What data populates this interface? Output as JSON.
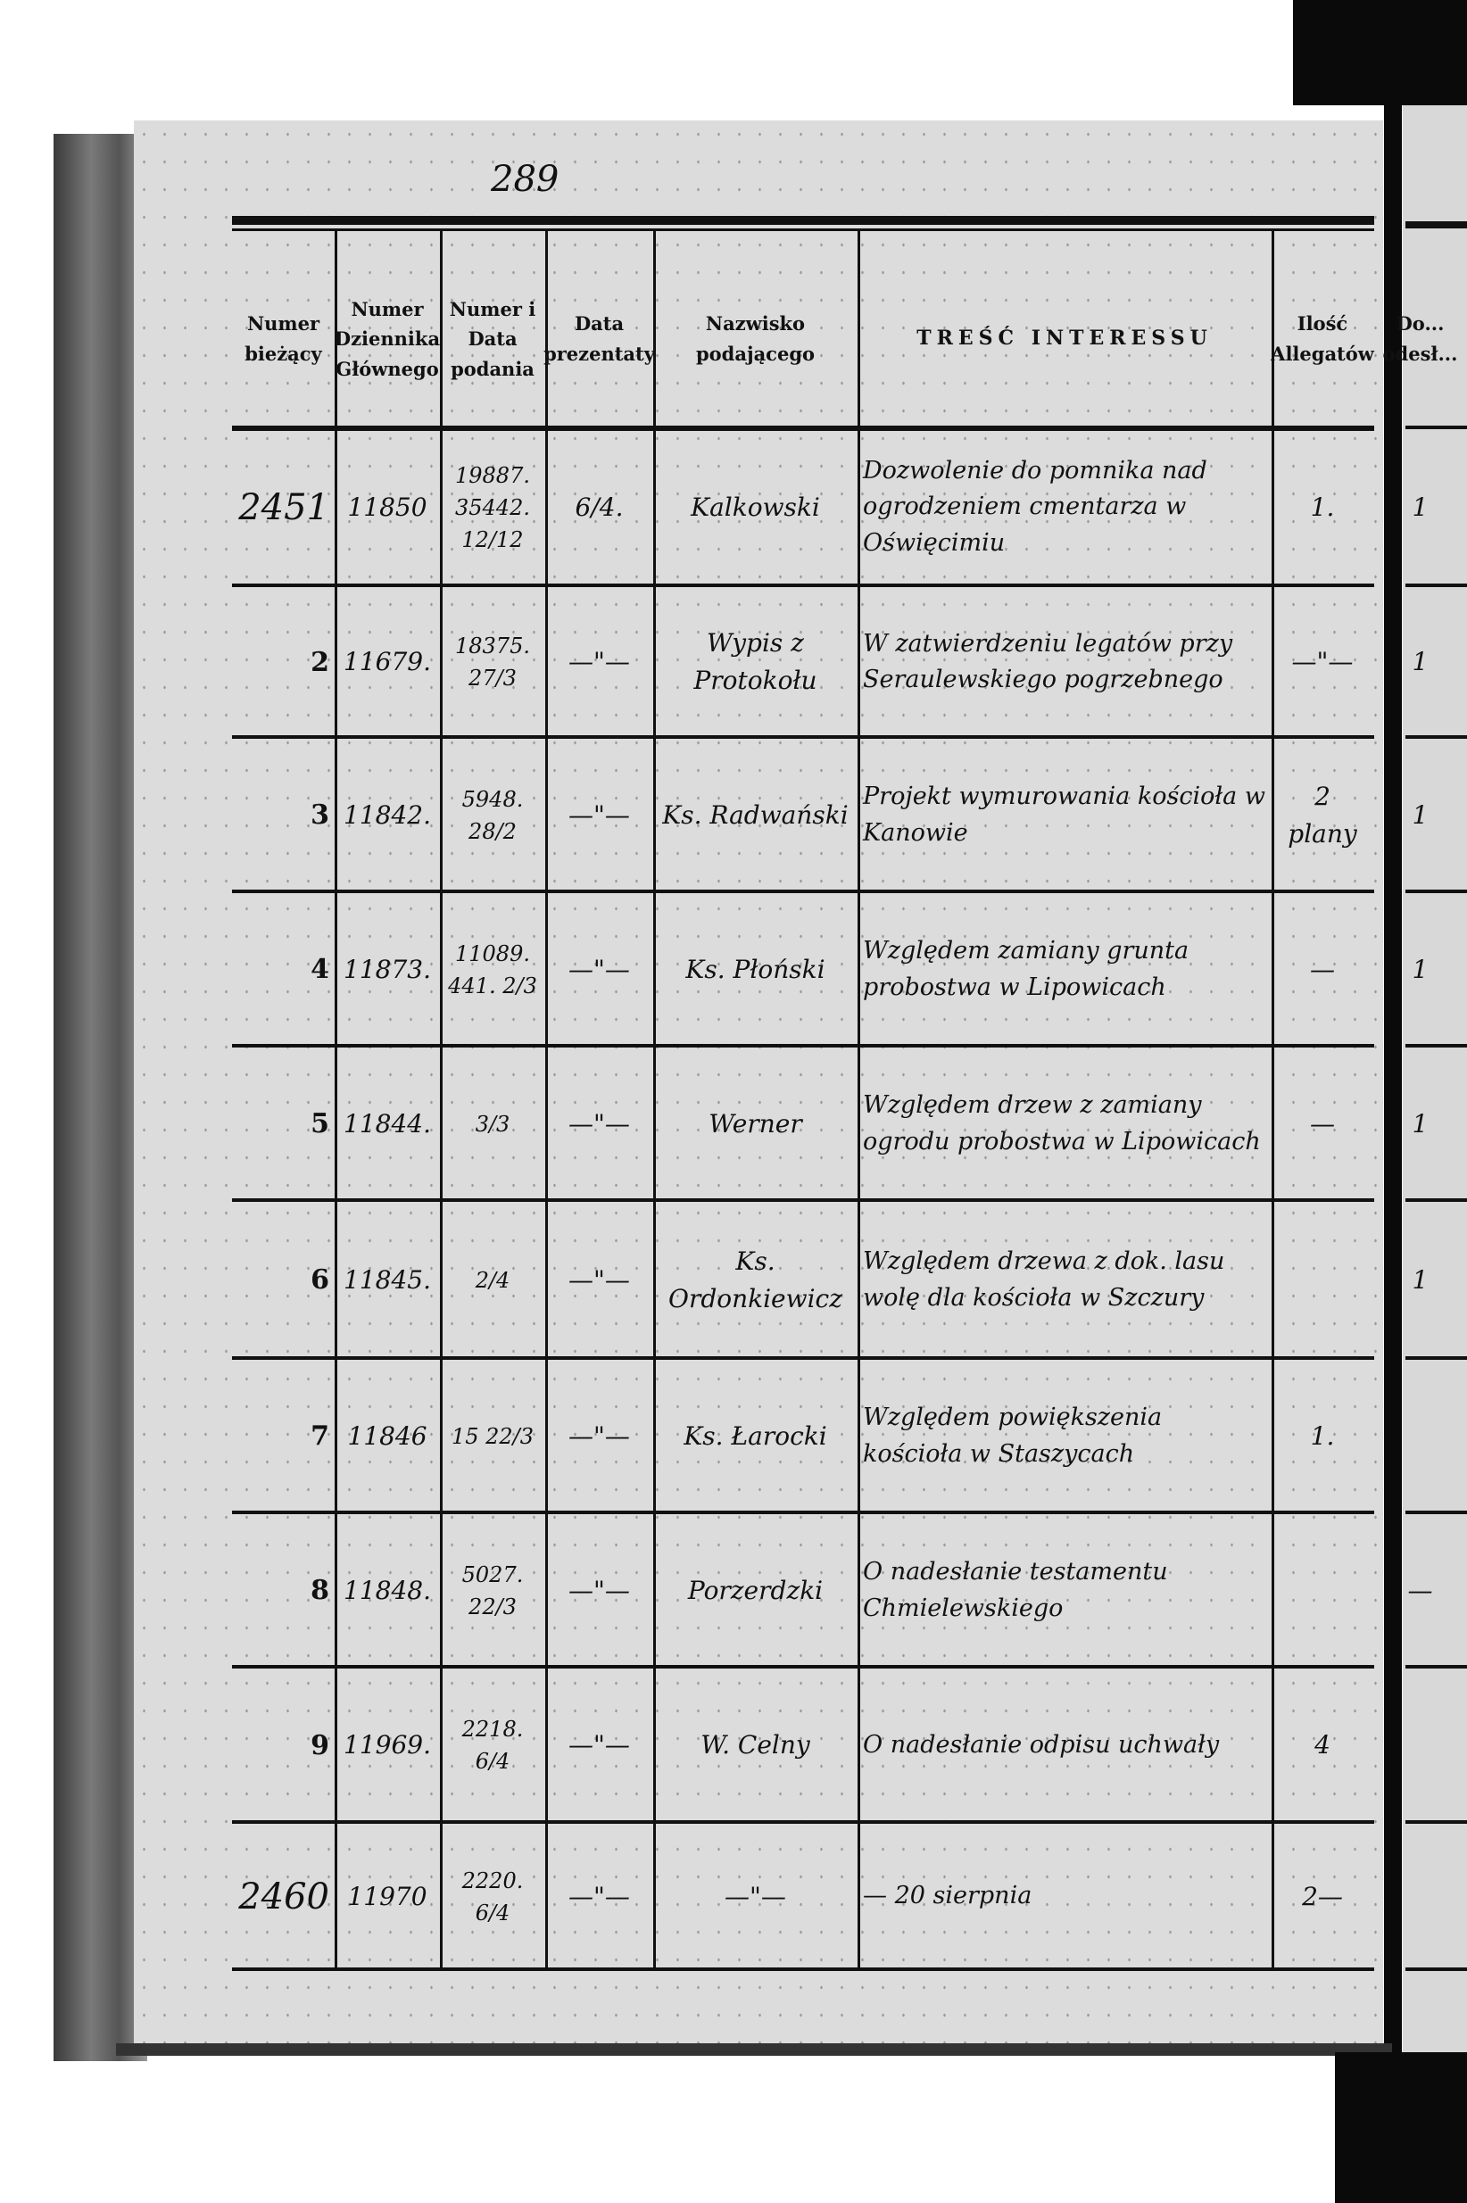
{
  "page_number": "289",
  "headers": [
    "Numer bieżący",
    "Numer Dziennika Głównego",
    "Numer i Data podania",
    "Data prezentaty",
    "Nazwisko podającego",
    "TREŚĆ INTERESSU",
    "Ilość Allegatów",
    "Do... odesł..."
  ],
  "rows": [
    {
      "numer": "2451",
      "dziennik": "11850",
      "podanie": "19887. 35442. 12/12",
      "prezentata": "6/4.",
      "nazwisko": "Kalkowski",
      "tresc": "Dozwolenie do pomnika nad ogrodzeniem cmentarza w Oświęcimiu",
      "allegata": "1.",
      "odeslanie": "1"
    },
    {
      "numer": "2",
      "dziennik": "11679.",
      "podanie": "18375. 27/3",
      "prezentata": "—\"—",
      "nazwisko": "Wypis z Protokołu",
      "tresc": "W zatwierdzeniu legatów przy Seraulewskiego pogrzebnego",
      "allegata": "—\"—",
      "odeslanie": "1"
    },
    {
      "numer": "3",
      "dziennik": "11842.",
      "podanie": "5948. 28/2",
      "prezentata": "—\"—",
      "nazwisko": "Ks. Radwański",
      "tresc": "Projekt wymurowania kościoła w Kanowie",
      "allegata": "2 plany",
      "odeslanie": "1"
    },
    {
      "numer": "4",
      "dziennik": "11873.",
      "podanie": "11089. 441. 2/3",
      "prezentata": "—\"—",
      "nazwisko": "Ks. Płoński",
      "tresc": "Względem zamiany grunta probostwa w Lipowicach",
      "allegata": "—",
      "odeslanie": "1"
    },
    {
      "numer": "5",
      "dziennik": "11844.",
      "podanie": "3/3",
      "prezentata": "—\"—",
      "nazwisko": "Werner",
      "tresc": "Względem drzew z zamiany ogrodu probostwa w Lipowicach",
      "allegata": "—",
      "odeslanie": "1"
    },
    {
      "numer": "6",
      "dziennik": "11845.",
      "podanie": "2/4",
      "prezentata": "—\"—",
      "nazwisko": "Ks. Ordonkiewicz",
      "tresc": "Względem drzewa z dok. lasu wolę dla kościoła w Szczury",
      "allegata": "",
      "odeslanie": "1"
    },
    {
      "numer": "7",
      "dziennik": "11846",
      "podanie": "15 22/3",
      "prezentata": "—\"—",
      "nazwisko": "Ks. Łarocki",
      "tresc": "Względem powiększenia kościoła w Staszycach",
      "allegata": "1.",
      "odeslanie": ""
    },
    {
      "numer": "8",
      "dziennik": "11848.",
      "podanie": "5027. 22/3",
      "prezentata": "—\"—",
      "nazwisko": "Porzerdzki",
      "tresc": "O nadesłanie testamentu Chmielewskiego",
      "allegata": "",
      "odeslanie": "—"
    },
    {
      "numer": "9",
      "dziennik": "11969.",
      "podanie": "2218. 6/4",
      "prezentata": "—\"—",
      "nazwisko": "W. Celny",
      "tresc": "O nadesłanie odpisu uchwały",
      "allegata": "4",
      "odeslanie": ""
    },
    {
      "numer": "2460",
      "dziennik": "11970",
      "podanie": "2220. 6/4",
      "prezentata": "—\"—",
      "nazwisko": "—\"—",
      "tresc": "— 20 sierpnia",
      "allegata": "2—",
      "odeslanie": ""
    }
  ]
}
